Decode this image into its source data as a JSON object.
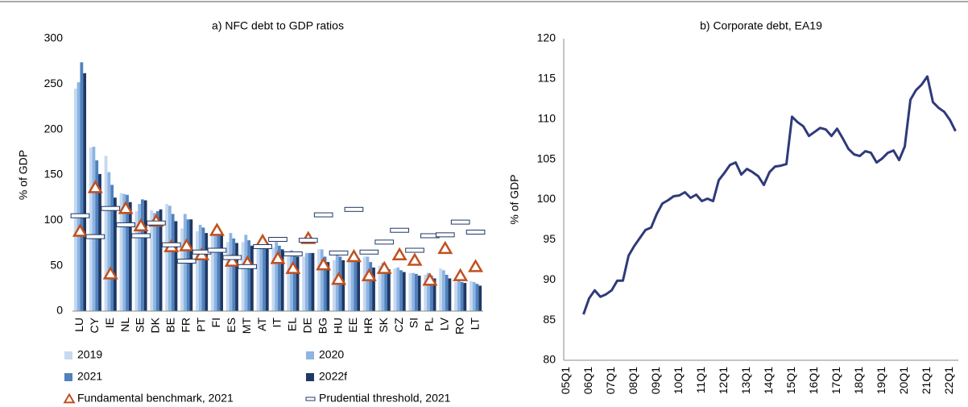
{
  "chart_data": [
    {
      "type": "bar",
      "title": "a) NFC debt to GDP ratios",
      "y_label": "% of GDP",
      "categories": [
        "LU",
        "CY",
        "IE",
        "NL",
        "SE",
        "DK",
        "BE",
        "FR",
        "PT",
        "FI",
        "ES",
        "MT",
        "AT",
        "IT",
        "EL",
        "DE",
        "BG",
        "HU",
        "EE",
        "HR",
        "SK",
        "CZ",
        "SI",
        "PL",
        "LV",
        "RO",
        "LT"
      ],
      "series": [
        {
          "name": "2019",
          "color": "#c5d9f1",
          "values": [
            245,
            180,
            171,
            130,
            110,
            111,
            118,
            91,
            88,
            84,
            76,
            76,
            73,
            70,
            60,
            60,
            68,
            56,
            55,
            60,
            50,
            47,
            42,
            40,
            47,
            32,
            33
          ]
        },
        {
          "name": "2020",
          "color": "#8db4e2",
          "values": [
            252,
            181,
            153,
            129,
            118,
            108,
            116,
            107,
            95,
            88,
            86,
            84,
            79,
            76,
            67,
            64,
            68,
            62,
            63,
            60,
            53,
            48,
            42,
            42,
            45,
            35,
            32
          ]
        },
        {
          "name": "2021",
          "color": "#4f81bd",
          "values": [
            274,
            166,
            139,
            128,
            123,
            110,
            107,
            101,
            92,
            86,
            80,
            78,
            77,
            72,
            65,
            64,
            60,
            60,
            60,
            54,
            49,
            45,
            41,
            39,
            40,
            32,
            30
          ]
        },
        {
          "name": "2022f",
          "color": "#1f3864",
          "values": [
            262,
            151,
            125,
            120,
            122,
            112,
            99,
            101,
            86,
            85,
            75,
            72,
            75,
            68,
            60,
            64,
            54,
            56,
            58,
            48,
            46,
            43,
            39,
            36,
            36,
            31,
            28
          ]
        },
        {
          "name": "Fundamental benchmark, 2021",
          "color": "#c0501f",
          "marker": "triangle",
          "values": [
            88,
            136,
            41,
            113,
            94,
            99,
            71,
            72,
            62,
            89,
            55,
            53,
            77,
            58,
            47,
            80,
            51,
            35,
            60,
            39,
            47,
            62,
            56,
            34,
            69,
            39,
            49
          ]
        },
        {
          "name": "Prudential threshold, 2021",
          "color": "#1f3864",
          "marker": "dash",
          "values": [
            105,
            82,
            113,
            95,
            83,
            97,
            73,
            55,
            65,
            67,
            59,
            49,
            71,
            79,
            63,
            78,
            106,
            64,
            112,
            65,
            76,
            89,
            67,
            83,
            84,
            98,
            87
          ]
        }
      ],
      "ylim": [
        0,
        300
      ],
      "yticks": [
        0,
        50,
        100,
        150,
        200,
        250,
        300
      ],
      "grid": false
    },
    {
      "type": "line",
      "title": "b) Corporate debt, EA19",
      "y_label": "% of GDP",
      "categories": [
        "05Q1",
        null,
        null,
        null,
        "06Q1",
        null,
        null,
        null,
        "07Q1",
        null,
        null,
        null,
        "08Q1",
        null,
        null,
        null,
        "09Q1",
        null,
        null,
        null,
        "10Q1",
        null,
        null,
        null,
        "11Q1",
        null,
        null,
        null,
        "12Q1",
        null,
        null,
        null,
        "13Q1",
        null,
        null,
        null,
        "14Q1",
        null,
        null,
        null,
        "15Q1",
        null,
        null,
        null,
        "16Q1",
        null,
        null,
        null,
        "17Q1",
        null,
        null,
        null,
        "18Q1",
        null,
        null,
        null,
        "19Q1",
        null,
        null,
        null,
        "20Q1",
        null,
        null,
        null,
        "21Q1",
        null,
        null,
        null,
        "22Q1",
        null
      ],
      "series": [
        {
          "name": "Corporate debt, EA19",
          "color": "#2f3a7a",
          "values": [
            null,
            null,
            null,
            85.7,
            87.7,
            88.7,
            87.9,
            88.2,
            88.7,
            89.9,
            89.9,
            93.0,
            94.2,
            95.2,
            96.2,
            96.5,
            98.2,
            99.5,
            99.9,
            100.4,
            100.5,
            100.9,
            100.2,
            100.6,
            99.8,
            100.1,
            99.8,
            102.4,
            103.3,
            104.3,
            104.6,
            103.1,
            103.8,
            103.4,
            102.9,
            101.8,
            103.4,
            104.1,
            104.2,
            104.4,
            110.3,
            109.6,
            109.1,
            107.9,
            108.4,
            108.9,
            108.7,
            107.9,
            108.8,
            107.6,
            106.3,
            105.6,
            105.4,
            106.0,
            105.8,
            104.6,
            105.1,
            105.8,
            106.1,
            104.9,
            106.6,
            112.4,
            113.6,
            114.3,
            115.3,
            112.1,
            111.4,
            110.9,
            109.9,
            108.5
          ]
        }
      ],
      "ylim": [
        80,
        120
      ],
      "yticks": [
        80,
        85,
        90,
        95,
        100,
        105,
        110,
        115,
        120
      ],
      "grid": false
    }
  ]
}
